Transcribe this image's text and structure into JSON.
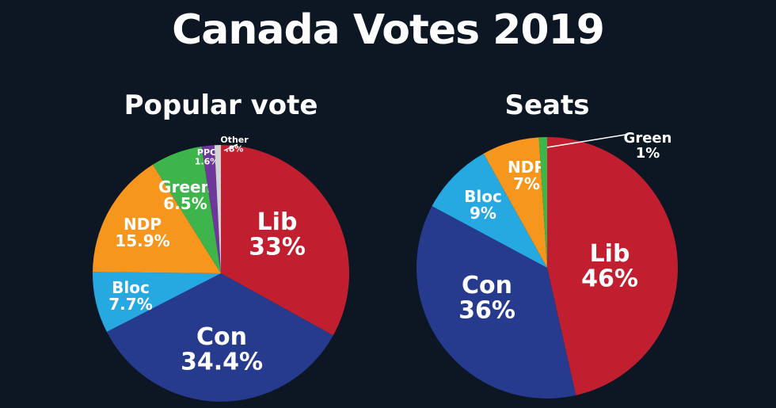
{
  "title": "Canada Votes 2019",
  "colors": {
    "Lib": "#c11f2f",
    "Con": "#263b8e",
    "Bloc": "#26a8e0",
    "NDP": "#f6961d",
    "Green": "#3db54a",
    "PPC": "#6e389a",
    "Other": "#d4d4d4",
    "background": "#0d1724"
  },
  "chart_data": [
    {
      "type": "pie",
      "title": "Popular vote",
      "start": "top",
      "direction": "clockwise",
      "slices": [
        {
          "name": "Lib",
          "value": 33,
          "label": "33%"
        },
        {
          "name": "Con",
          "value": 34.4,
          "label": "34.4%"
        },
        {
          "name": "Bloc",
          "value": 7.7,
          "label": "7.7%"
        },
        {
          "name": "NDP",
          "value": 15.9,
          "label": "15.9%"
        },
        {
          "name": "Green",
          "value": 6.5,
          "label": "6.5%"
        },
        {
          "name": "PPC",
          "value": 1.6,
          "label": "1.6%"
        },
        {
          "name": "Other",
          "value": 0.8,
          "label": ".8%"
        }
      ]
    },
    {
      "type": "pie",
      "title": "Seats",
      "start": "top",
      "direction": "clockwise",
      "slices": [
        {
          "name": "Lib",
          "value": 46,
          "label": "46%"
        },
        {
          "name": "Con",
          "value": 36,
          "label": "36%"
        },
        {
          "name": "Bloc",
          "value": 9,
          "label": "9%"
        },
        {
          "name": "NDP",
          "value": 7,
          "label": "7%"
        },
        {
          "name": "Green",
          "value": 1,
          "label": "1%"
        }
      ]
    }
  ]
}
